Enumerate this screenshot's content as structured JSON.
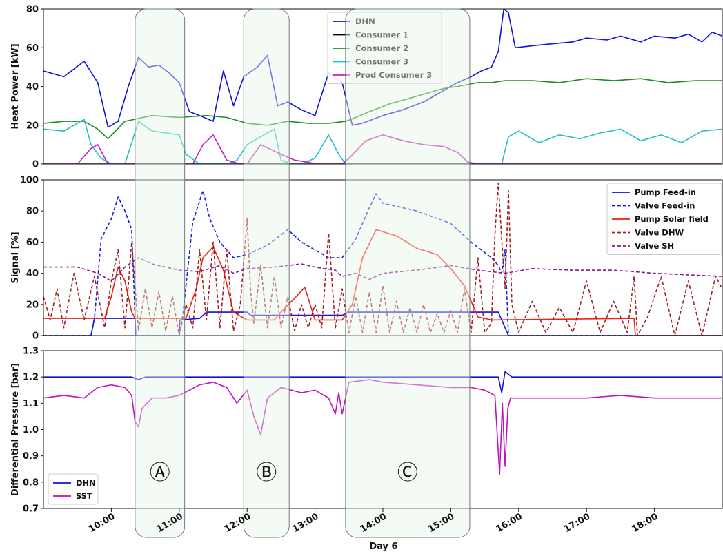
{
  "chart_data": [
    {
      "type": "line",
      "ylabel": "Heat Power [kW]",
      "ylim": [
        0,
        80
      ],
      "yticks": [
        0,
        20,
        40,
        60,
        80
      ],
      "xlim": [
        9.0,
        19.0
      ],
      "legend_position": "top-center",
      "series": [
        {
          "name": "DHN",
          "color": "#1010e0",
          "style": "solid",
          "x": [
            9.0,
            9.3,
            9.6,
            9.8,
            9.95,
            10.1,
            10.25,
            10.4,
            10.55,
            10.7,
            10.85,
            11.0,
            11.15,
            11.3,
            11.5,
            11.65,
            11.8,
            11.95,
            12.15,
            12.3,
            12.45,
            12.6,
            12.8,
            13.0,
            13.2,
            13.4,
            13.55,
            13.7,
            13.85,
            14.0,
            14.3,
            14.6,
            14.9,
            15.1,
            15.3,
            15.45,
            15.6,
            15.7,
            15.78,
            15.85,
            15.95,
            16.2,
            16.5,
            16.8,
            17.0,
            17.3,
            17.5,
            17.8,
            18.0,
            18.3,
            18.5,
            18.7,
            18.85,
            19.0
          ],
          "y": [
            48,
            45,
            53,
            42,
            19,
            22,
            40,
            55,
            50,
            51,
            47,
            42,
            27,
            25,
            22,
            48,
            30,
            45,
            50,
            56,
            30,
            32,
            28,
            25,
            47,
            42,
            20,
            21,
            23,
            25,
            28,
            32,
            38,
            42,
            45,
            48,
            50,
            58,
            80,
            78,
            60,
            61,
            62,
            63,
            65,
            64,
            66,
            63,
            66,
            65,
            67,
            63,
            68,
            66
          ]
        },
        {
          "name": "Consumer 1",
          "color": "#000000",
          "style": "solid",
          "x": [
            9.0,
            19.0
          ],
          "y": [
            0,
            0
          ]
        },
        {
          "name": "Consumer 2",
          "color": "#1f8c1f",
          "style": "solid",
          "x": [
            9.0,
            9.3,
            9.6,
            9.8,
            9.95,
            10.2,
            10.6,
            11.0,
            11.4,
            11.7,
            12.0,
            12.3,
            12.6,
            12.9,
            13.2,
            13.45,
            13.6,
            13.8,
            14.1,
            14.5,
            14.9,
            15.1,
            15.4,
            15.6,
            15.8,
            16.2,
            16.6,
            17.0,
            17.4,
            17.8,
            18.2,
            18.6,
            19.0
          ],
          "y": [
            21,
            22,
            22,
            18,
            13,
            22,
            25,
            24,
            25,
            24,
            21,
            20,
            22,
            21,
            21,
            22,
            24,
            27,
            31,
            35,
            39,
            40,
            42,
            42,
            43,
            43,
            42,
            44,
            43,
            44,
            42,
            43,
            43
          ]
        },
        {
          "name": "Consumer 3",
          "color": "#20c0c0",
          "style": "solid",
          "x": [
            9.0,
            9.3,
            9.6,
            9.7,
            9.85,
            10.0,
            10.2,
            10.4,
            10.6,
            10.8,
            11.0,
            11.1,
            11.3,
            11.5,
            11.7,
            11.85,
            12.0,
            12.2,
            12.4,
            12.5,
            12.65,
            12.8,
            13.0,
            13.2,
            13.35,
            13.45,
            13.6,
            13.8,
            14.0,
            14.5,
            15.0,
            15.5,
            15.75,
            15.85,
            16.0,
            16.3,
            16.6,
            16.9,
            17.2,
            17.5,
            17.8,
            18.1,
            18.4,
            18.7,
            19.0
          ],
          "y": [
            18,
            17,
            23,
            10,
            3,
            0,
            0,
            22,
            17,
            16,
            15,
            5,
            0,
            0,
            0,
            2,
            10,
            14,
            18,
            2,
            0,
            0,
            3,
            15,
            5,
            0,
            0,
            0,
            0,
            0,
            0,
            0,
            0,
            14,
            17,
            11,
            15,
            13,
            16,
            18,
            12,
            15,
            11,
            17,
            18
          ]
        },
        {
          "name": "Prod Consumer 3",
          "color": "#c020c0",
          "style": "solid",
          "x": [
            9.0,
            9.5,
            9.7,
            9.8,
            9.95,
            10.0,
            10.8,
            11.0,
            11.2,
            11.35,
            11.5,
            11.7,
            11.9,
            12.0,
            12.2,
            12.5,
            12.7,
            12.9,
            13.0,
            13.4,
            13.5,
            13.75,
            14.0,
            14.3,
            14.6,
            14.9,
            15.1,
            15.25,
            15.4,
            19.0
          ],
          "y": [
            0,
            0,
            8,
            10,
            0,
            0,
            0,
            0,
            0,
            10,
            15,
            2,
            0,
            0,
            10,
            5,
            2,
            1,
            0,
            0,
            3,
            12,
            15,
            12,
            10,
            9,
            6,
            1,
            0,
            0
          ]
        }
      ]
    },
    {
      "type": "line",
      "ylabel": "Signal [%]",
      "ylim": [
        0,
        100
      ],
      "yticks": [
        0,
        20,
        40,
        60,
        80,
        100
      ],
      "xlim": [
        9.0,
        19.0
      ],
      "legend_position": "top-right",
      "series": [
        {
          "name": "Pump Feed-in",
          "color": "#1010e0",
          "style": "solid",
          "x": [
            9.0,
            9.7,
            9.75,
            10.35,
            10.36,
            11.0,
            11.01,
            11.3,
            11.4,
            12.0,
            12.05,
            13.4,
            13.5,
            15.7,
            15.85,
            19.0
          ],
          "y": [
            0,
            0,
            11,
            11,
            0,
            0,
            10,
            11,
            15,
            15,
            13,
            13,
            15,
            15,
            0,
            0
          ]
        },
        {
          "name": "Valve Feed-in",
          "color": "#1020e0",
          "style": "dashed",
          "x": [
            9.0,
            9.7,
            9.75,
            9.85,
            10.0,
            10.1,
            10.2,
            10.3,
            10.36,
            10.37,
            11.0,
            11.05,
            11.2,
            11.35,
            11.45,
            11.6,
            11.8,
            12.0,
            12.3,
            12.6,
            12.8,
            13.0,
            13.2,
            13.4,
            13.6,
            13.8,
            13.9,
            14.0,
            14.5,
            15.0,
            15.3,
            15.6,
            15.7,
            15.75,
            15.8,
            15.85,
            19.0
          ],
          "y": [
            0,
            0,
            10,
            62,
            75,
            89,
            80,
            68,
            0,
            0,
            0,
            12,
            73,
            93,
            75,
            60,
            50,
            52,
            58,
            68,
            60,
            55,
            50,
            50,
            62,
            82,
            91,
            85,
            80,
            72,
            60,
            50,
            45,
            40,
            55,
            0,
            0
          ]
        },
        {
          "name": "Pump Solar field",
          "color": "#ee2010",
          "style": "solid",
          "x": [
            9.0,
            9.9,
            10.0,
            10.1,
            10.2,
            10.3,
            10.35,
            11.1,
            11.25,
            11.35,
            11.5,
            11.65,
            11.8,
            12.0,
            12.4,
            12.5,
            12.7,
            12.85,
            13.0,
            13.4,
            13.55,
            13.7,
            13.9,
            14.2,
            14.5,
            14.8,
            15.0,
            15.2,
            15.4,
            15.6,
            17.7,
            17.72,
            19.0
          ],
          "y": [
            11,
            11,
            25,
            44,
            35,
            15,
            11,
            11,
            30,
            50,
            57,
            42,
            15,
            10,
            10,
            15,
            24,
            31,
            10,
            10,
            20,
            50,
            68,
            64,
            56,
            52,
            43,
            32,
            12,
            10,
            11,
            0,
            0
          ]
        },
        {
          "name": "Valve DHW",
          "color": "#a02020",
          "style": "dashed",
          "x": [
            9.0,
            9.1,
            9.2,
            9.3,
            9.45,
            9.6,
            9.75,
            9.9,
            10.0,
            10.1,
            10.2,
            10.3,
            10.4,
            10.5,
            10.6,
            10.7,
            10.8,
            10.9,
            11.0,
            11.1,
            11.2,
            11.3,
            11.4,
            11.5,
            11.6,
            11.7,
            11.8,
            11.9,
            12.0,
            12.05,
            12.1,
            12.2,
            12.3,
            12.4,
            12.5,
            12.6,
            12.7,
            12.8,
            12.9,
            13.0,
            13.1,
            13.2,
            13.3,
            13.4,
            13.5,
            13.6,
            13.7,
            13.8,
            13.9,
            14.0,
            14.1,
            14.2,
            14.3,
            14.4,
            14.5,
            14.6,
            14.7,
            14.8,
            14.9,
            15.0,
            15.1,
            15.2,
            15.3,
            15.4,
            15.5,
            15.6,
            15.65,
            15.7,
            15.75,
            15.8,
            15.85,
            15.9,
            16.0,
            16.2,
            16.4,
            16.6,
            16.8,
            17.0,
            17.2,
            17.4,
            17.6,
            17.7,
            17.75,
            17.9,
            18.1,
            18.3,
            18.5,
            18.7,
            18.9,
            19.0
          ],
          "y": [
            25,
            10,
            30,
            5,
            40,
            10,
            38,
            5,
            35,
            55,
            5,
            60,
            3,
            30,
            5,
            28,
            3,
            25,
            0,
            20,
            5,
            55,
            10,
            60,
            5,
            55,
            3,
            20,
            75,
            30,
            8,
            45,
            5,
            38,
            5,
            25,
            3,
            20,
            5,
            20,
            5,
            66,
            5,
            30,
            2,
            25,
            2,
            28,
            2,
            32,
            2,
            22,
            2,
            18,
            2,
            20,
            2,
            14,
            2,
            16,
            2,
            30,
            2,
            50,
            2,
            8,
            65,
            98,
            62,
            30,
            93,
            20,
            2,
            22,
            2,
            18,
            2,
            35,
            2,
            22,
            2,
            38,
            0,
            12,
            38,
            0,
            35,
            0,
            38,
            30
          ]
        },
        {
          "name": "Valve SH",
          "color": "#8a1a8a",
          "style": "dashed",
          "x": [
            9.0,
            9.5,
            9.8,
            10.0,
            10.2,
            10.4,
            10.6,
            10.8,
            11.0,
            11.3,
            11.6,
            11.8,
            12.0,
            12.4,
            12.8,
            13.0,
            13.3,
            13.4,
            13.6,
            13.8,
            14.0,
            14.5,
            15.0,
            15.4,
            15.8,
            16.2,
            16.8,
            17.4,
            18.0,
            18.5,
            19.0
          ],
          "y": [
            44,
            44,
            40,
            35,
            44,
            50,
            46,
            44,
            42,
            41,
            45,
            40,
            43,
            44,
            46,
            44,
            42,
            38,
            40,
            36,
            40,
            42,
            45,
            42,
            40,
            43,
            42,
            42,
            40,
            39,
            38
          ]
        }
      ]
    },
    {
      "type": "line",
      "ylabel": "Differential Pressure [bar]",
      "ylim": [
        0.7,
        1.3
      ],
      "yticks": [
        0.7,
        0.8,
        0.9,
        1.0,
        1.1,
        1.2,
        1.3
      ],
      "xlim": [
        9.0,
        19.0
      ],
      "legend_position": "bottom-left",
      "series": [
        {
          "name": "DHN",
          "color": "#1010e0",
          "style": "solid",
          "x": [
            9.0,
            10.3,
            10.4,
            10.5,
            11.0,
            11.5,
            12.0,
            12.5,
            13.0,
            13.5,
            15.0,
            15.7,
            15.75,
            15.8,
            15.9,
            16.0,
            17.0,
            18.0,
            19.0
          ],
          "y": [
            1.2,
            1.2,
            1.19,
            1.2,
            1.2,
            1.2,
            1.2,
            1.2,
            1.2,
            1.2,
            1.2,
            1.2,
            1.14,
            1.22,
            1.2,
            1.2,
            1.2,
            1.2,
            1.2
          ]
        },
        {
          "name": "SST",
          "color": "#c010c0",
          "style": "solid",
          "x": [
            9.0,
            9.3,
            9.6,
            9.8,
            10.0,
            10.2,
            10.3,
            10.35,
            10.4,
            10.45,
            10.6,
            10.8,
            11.0,
            11.3,
            11.5,
            11.7,
            11.85,
            12.0,
            12.1,
            12.2,
            12.3,
            12.5,
            12.8,
            13.0,
            13.2,
            13.3,
            13.35,
            13.4,
            13.5,
            13.8,
            14.0,
            14.5,
            15.0,
            15.3,
            15.5,
            15.65,
            15.72,
            15.76,
            15.8,
            15.84,
            15.88,
            16.0,
            16.5,
            17.0,
            17.5,
            18.0,
            18.5,
            19.0
          ],
          "y": [
            1.12,
            1.13,
            1.12,
            1.16,
            1.17,
            1.16,
            1.13,
            1.03,
            1.01,
            1.08,
            1.12,
            1.12,
            1.13,
            1.17,
            1.18,
            1.16,
            1.1,
            1.15,
            1.05,
            0.98,
            1.12,
            1.16,
            1.14,
            1.15,
            1.12,
            1.06,
            1.14,
            1.06,
            1.18,
            1.19,
            1.18,
            1.17,
            1.16,
            1.16,
            1.15,
            1.13,
            0.83,
            1.1,
            0.86,
            1.08,
            1.12,
            1.12,
            1.12,
            1.12,
            1.13,
            1.12,
            1.12,
            1.12
          ]
        }
      ]
    }
  ],
  "x_axis": {
    "label": "Day 6",
    "tick_values": [
      10,
      11,
      12,
      13,
      14,
      15,
      16,
      17,
      18
    ],
    "tick_labels": [
      "10:00",
      "11:00",
      "12:00",
      "13:00",
      "14:00",
      "15:00",
      "16:00",
      "17:00",
      "18:00"
    ]
  },
  "highlights": [
    {
      "label": "A",
      "glyph": "Ⓐ",
      "start": 10.35,
      "end": 11.08
    },
    {
      "label": "B",
      "glyph": "Ⓑ",
      "start": 11.95,
      "end": 12.62
    },
    {
      "label": "C",
      "glyph": "Ⓒ",
      "start": 13.45,
      "end": 15.28
    }
  ]
}
